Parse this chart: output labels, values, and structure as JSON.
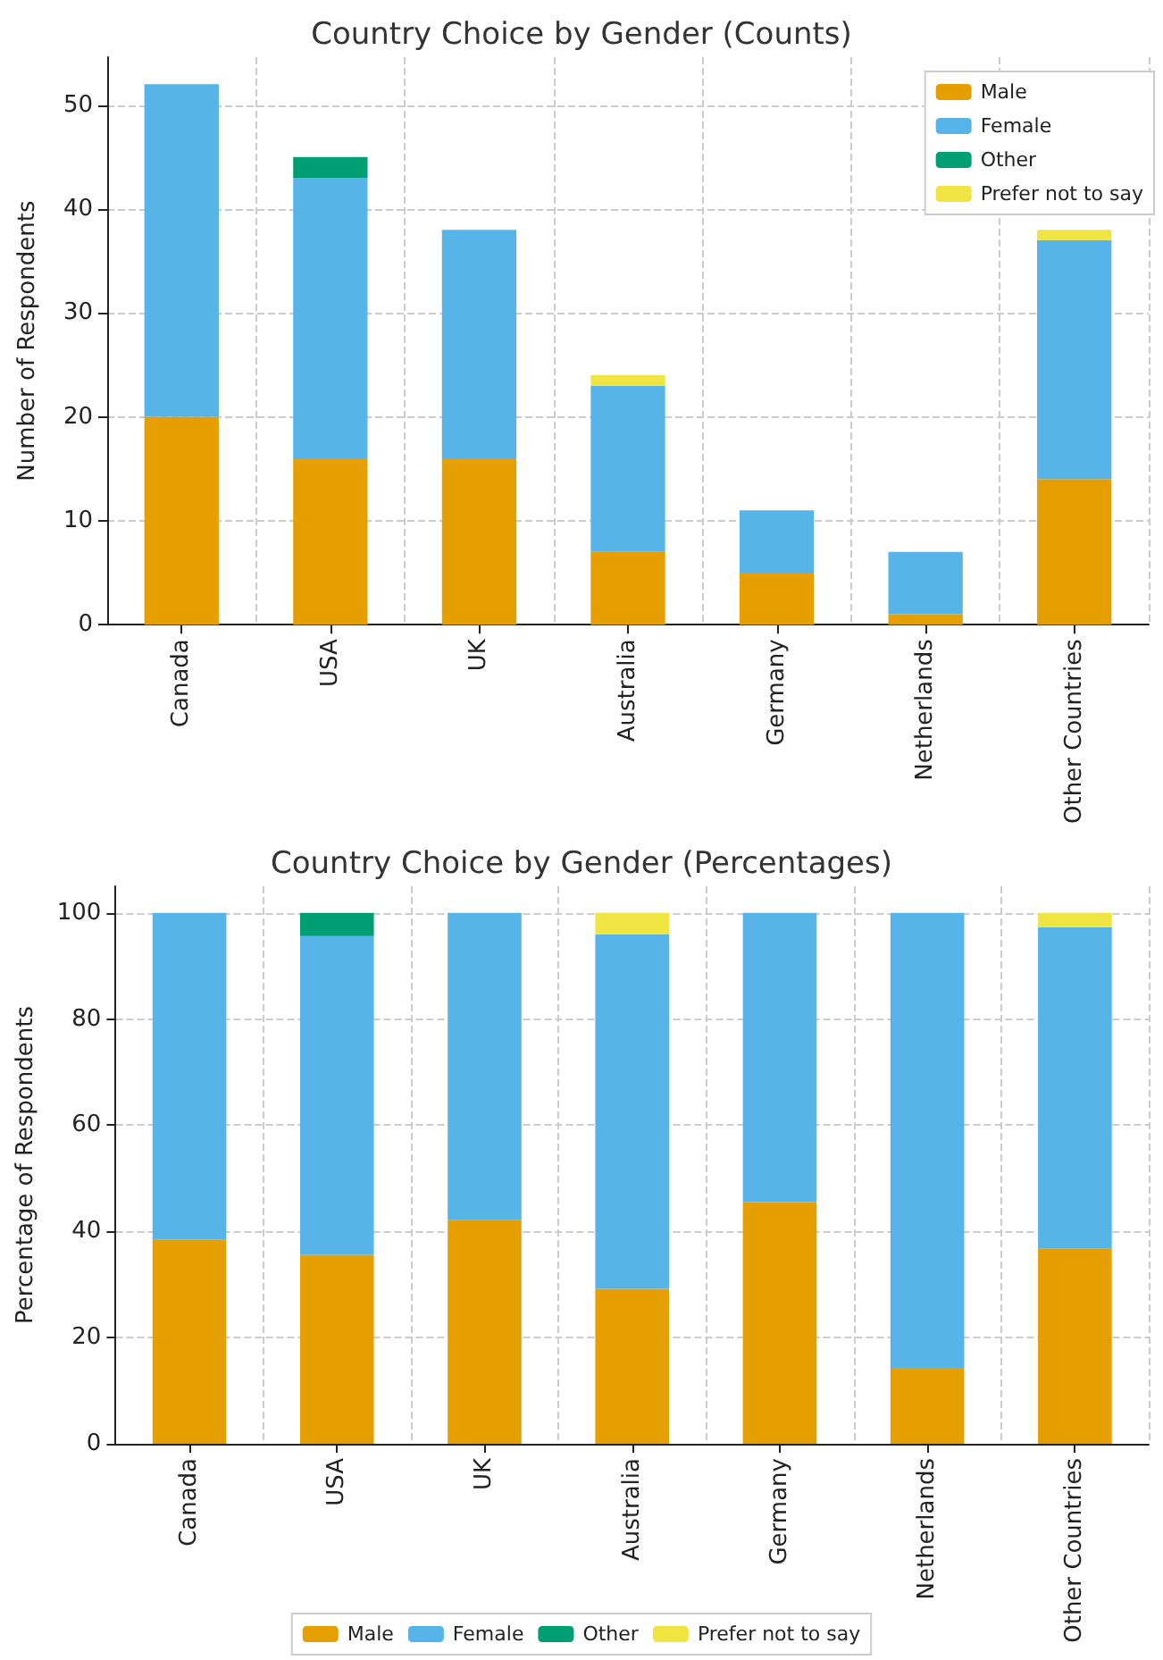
{
  "chart_data": [
    {
      "type": "bar",
      "title": "Country Choice by Gender (Counts)",
      "ylabel": "Number of Respondents",
      "stacked": true,
      "categories": [
        "Canada",
        "USA",
        "UK",
        "Australia",
        "Germany",
        "Netherlands",
        "Other Countries"
      ],
      "series": [
        {
          "name": "Male",
          "color": "#e69f00",
          "values": [
            20,
            16,
            16,
            7,
            5,
            1,
            14
          ]
        },
        {
          "name": "Female",
          "color": "#56b4e9",
          "values": [
            32,
            27,
            22,
            16,
            6,
            6,
            23
          ]
        },
        {
          "name": "Other",
          "color": "#009e73",
          "values": [
            0,
            2,
            0,
            0,
            0,
            0,
            0
          ]
        },
        {
          "name": "Prefer not to say",
          "color": "#f0e442",
          "values": [
            0,
            0,
            0,
            1,
            0,
            0,
            1
          ]
        }
      ],
      "ylim": [
        0,
        54.6
      ],
      "yticks": [
        0,
        10,
        20,
        30,
        40,
        50
      ],
      "grid": true,
      "legend": "top right"
    },
    {
      "type": "bar",
      "title": "Country Choice by Gender (Percentages)",
      "ylabel": "Percentage of Respondents",
      "stacked": true,
      "categories": [
        "Canada",
        "USA",
        "UK",
        "Australia",
        "Germany",
        "Netherlands",
        "Other Countries"
      ],
      "series": [
        {
          "name": "Male",
          "color": "#e69f00",
          "values": [
            38.5,
            35.6,
            42.1,
            29.2,
            45.5,
            14.3,
            36.8
          ]
        },
        {
          "name": "Female",
          "color": "#56b4e9",
          "values": [
            61.5,
            60.0,
            57.9,
            66.7,
            54.5,
            85.7,
            60.5
          ]
        },
        {
          "name": "Other",
          "color": "#009e73",
          "values": [
            0,
            4.4,
            0,
            0,
            0,
            0,
            0
          ]
        },
        {
          "name": "Prefer not to say",
          "color": "#f0e442",
          "values": [
            0,
            0,
            0,
            4.1,
            0,
            0,
            2.7
          ]
        }
      ],
      "ylim": [
        0,
        105
      ],
      "yticks": [
        0,
        20,
        40,
        60,
        80,
        100
      ],
      "grid": true,
      "legend": "bottom"
    }
  ]
}
